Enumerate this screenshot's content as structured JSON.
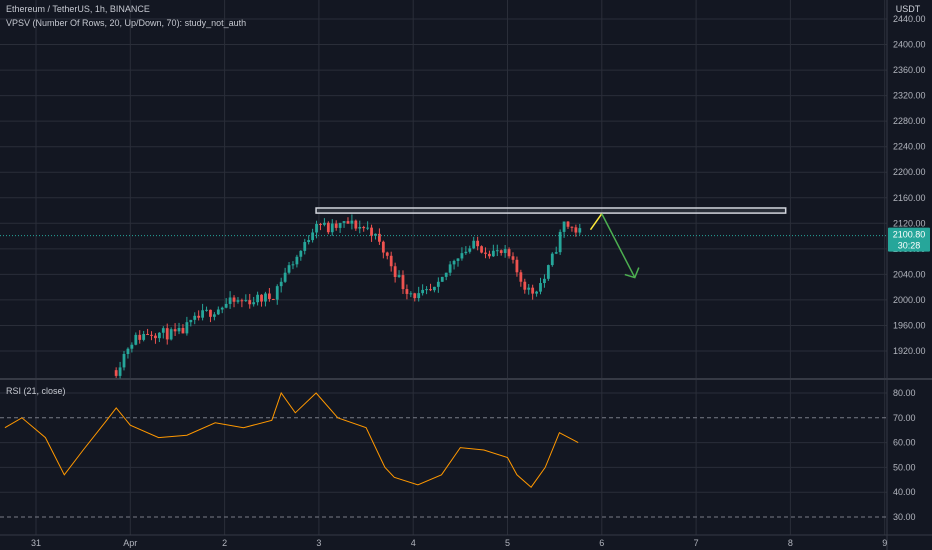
{
  "header": {
    "symbol_line": "Ethereum / TetherUS, 1h, BINANCE",
    "indicator_line": "VPSV (Number Of Rows, 20, Up/Down, 70): study_not_auth",
    "currency": "USDT"
  },
  "price_axis": {
    "ticks": [
      "2440.00",
      "2400.00",
      "2360.00",
      "2320.00",
      "2280.00",
      "2240.00",
      "2200.00",
      "2160.00",
      "2120.00",
      "2080.00",
      "2040.00",
      "2000.00",
      "1960.00",
      "1920.00"
    ],
    "min": 1880,
    "max": 2440
  },
  "last_price": {
    "value": "2100.80",
    "countdown": "30:28",
    "color": "#26a69a"
  },
  "rsi": {
    "label": "RSI (21, close)",
    "ticks": [
      "80.00",
      "70.00",
      "60.00",
      "50.00",
      "40.00",
      "30.00"
    ],
    "min": 26,
    "max": 84,
    "upper_band": 70,
    "lower_band": 30,
    "line_color": "#ff9800"
  },
  "time_axis": {
    "labels": [
      "31",
      "Apr",
      "2",
      "3",
      "4",
      "5",
      "6",
      "7",
      "8",
      "9"
    ]
  },
  "colors": {
    "background": "#131722",
    "grid": "#2a2e39",
    "up": "#26a69a",
    "down": "#ef5350",
    "resistance_box": "#d1d4dc",
    "projection_up": "#ffeb3b",
    "projection_down": "#4caf50"
  },
  "chart_data": {
    "type": "candlestick",
    "symbol": "ETH/USDT",
    "interval": "1h",
    "day_labels": [
      "31",
      "Apr",
      "2",
      "3",
      "4",
      "5",
      "6",
      "7",
      "8",
      "9"
    ],
    "close_path": [
      {
        "day": 0.85,
        "price": 1890
      },
      {
        "day": 1.0,
        "price": 1935
      },
      {
        "day": 1.2,
        "price": 1950
      },
      {
        "day": 1.5,
        "price": 1945
      },
      {
        "day": 1.75,
        "price": 1975
      },
      {
        "day": 2.05,
        "price": 1995
      },
      {
        "day": 2.3,
        "price": 2000
      },
      {
        "day": 2.5,
        "price": 2005
      },
      {
        "day": 2.65,
        "price": 2045
      },
      {
        "day": 2.85,
        "price": 2085
      },
      {
        "day": 2.97,
        "price": 2125
      },
      {
        "day": 3.1,
        "price": 2110
      },
      {
        "day": 3.3,
        "price": 2120
      },
      {
        "day": 3.55,
        "price": 2110
      },
      {
        "day": 3.75,
        "price": 2060
      },
      {
        "day": 3.9,
        "price": 2020
      },
      {
        "day": 4.05,
        "price": 2005
      },
      {
        "day": 4.25,
        "price": 2015
      },
      {
        "day": 4.45,
        "price": 2070
      },
      {
        "day": 4.65,
        "price": 2085
      },
      {
        "day": 4.85,
        "price": 2075
      },
      {
        "day": 5.0,
        "price": 2070
      },
      {
        "day": 5.15,
        "price": 2030
      },
      {
        "day": 5.25,
        "price": 2010
      },
      {
        "day": 5.4,
        "price": 2035
      },
      {
        "day": 5.5,
        "price": 2075
      },
      {
        "day": 5.6,
        "price": 2120
      },
      {
        "day": 5.78,
        "price": 2105
      }
    ],
    "rsi_path": [
      {
        "day": -0.33,
        "value": 66
      },
      {
        "day": -0.15,
        "value": 70
      },
      {
        "day": 0.1,
        "value": 62
      },
      {
        "day": 0.3,
        "value": 47
      },
      {
        "day": 0.5,
        "value": 57
      },
      {
        "day": 0.75,
        "value": 69
      },
      {
        "day": 0.85,
        "value": 74
      },
      {
        "day": 1.0,
        "value": 67
      },
      {
        "day": 1.3,
        "value": 62
      },
      {
        "day": 1.6,
        "value": 63
      },
      {
        "day": 1.9,
        "value": 68
      },
      {
        "day": 2.2,
        "value": 66
      },
      {
        "day": 2.5,
        "value": 69
      },
      {
        "day": 2.6,
        "value": 80
      },
      {
        "day": 2.75,
        "value": 72
      },
      {
        "day": 2.97,
        "value": 80
      },
      {
        "day": 3.2,
        "value": 70
      },
      {
        "day": 3.5,
        "value": 66
      },
      {
        "day": 3.7,
        "value": 50
      },
      {
        "day": 3.8,
        "value": 46
      },
      {
        "day": 4.05,
        "value": 43
      },
      {
        "day": 4.3,
        "value": 47
      },
      {
        "day": 4.5,
        "value": 58
      },
      {
        "day": 4.75,
        "value": 57
      },
      {
        "day": 5.0,
        "value": 54
      },
      {
        "day": 5.1,
        "value": 47
      },
      {
        "day": 5.25,
        "value": 42
      },
      {
        "day": 5.4,
        "value": 50
      },
      {
        "day": 5.55,
        "value": 64
      },
      {
        "day": 5.75,
        "value": 60
      }
    ],
    "resistance_zone": {
      "from_day": 2.97,
      "to_day": 7.95,
      "low": 2136,
      "high": 2144
    },
    "projection": [
      {
        "day": 5.88,
        "price": 2110
      },
      {
        "day": 6.0,
        "price": 2135
      },
      {
        "day": 6.35,
        "price": 2035
      }
    ],
    "ylim": [
      1880,
      2440
    ]
  }
}
